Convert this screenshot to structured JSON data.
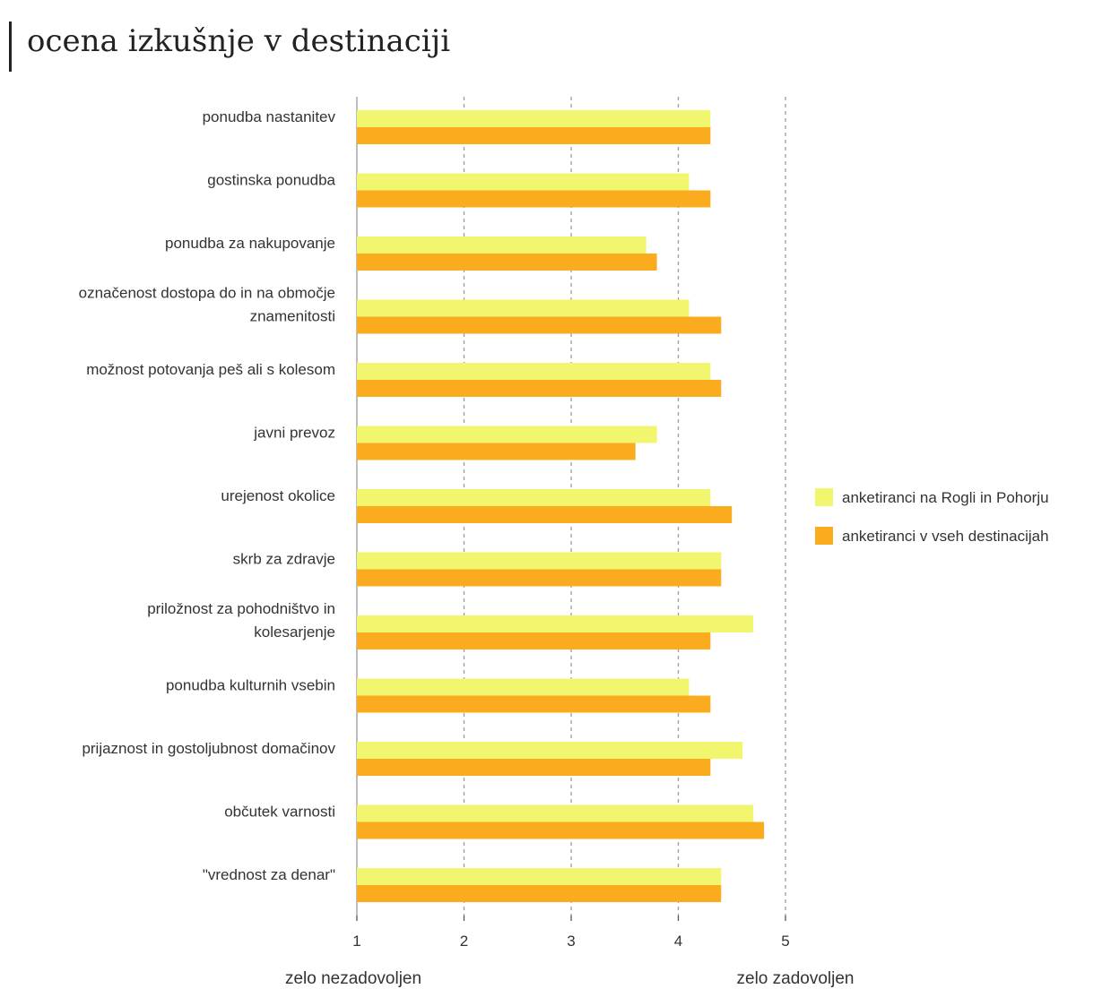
{
  "chart_data": {
    "type": "bar",
    "orientation": "horizontal",
    "title": "ocena izkušnje v destinaciji",
    "categories": [
      [
        "ponudba nastanitev"
      ],
      [
        "gostinska ponudba"
      ],
      [
        "ponudba za nakupovanje"
      ],
      [
        "označenost dostopa do in na območje",
        "znamenitosti"
      ],
      [
        "možnost potovanja peš ali s kolesom"
      ],
      [
        "javni prevoz"
      ],
      [
        "urejenost okolice"
      ],
      [
        "skrb za zdravje"
      ],
      [
        "priložnost za pohodništvo in",
        "kolesarjenje"
      ],
      [
        "ponudba kulturnih vsebin"
      ],
      [
        "prijaznost in gostoljubnost domačinov"
      ],
      [
        "občutek varnosti"
      ],
      [
        "\"vrednost za denar\""
      ]
    ],
    "series": [
      {
        "name": "anketiranci na Rogli in Pohorju",
        "color": "#f2f56e",
        "values": [
          4.3,
          4.1,
          3.7,
          4.1,
          4.3,
          3.8,
          4.3,
          4.4,
          4.7,
          4.1,
          4.6,
          4.7,
          4.4
        ]
      },
      {
        "name": "anketiranci v vseh destinacijah",
        "color": "#fbac1e",
        "values": [
          4.3,
          4.3,
          3.8,
          4.4,
          4.4,
          3.6,
          4.5,
          4.4,
          4.3,
          4.3,
          4.3,
          4.8,
          4.4
        ]
      }
    ],
    "x_ticks": [
      "1",
      "2",
      "3",
      "4",
      "5"
    ],
    "xlim": [
      1,
      5
    ],
    "x_min_label": "zelo nezadovoljen",
    "x_max_label": "zelo zadovoljen",
    "grid": "vertical dashed",
    "legend_position": "right"
  }
}
